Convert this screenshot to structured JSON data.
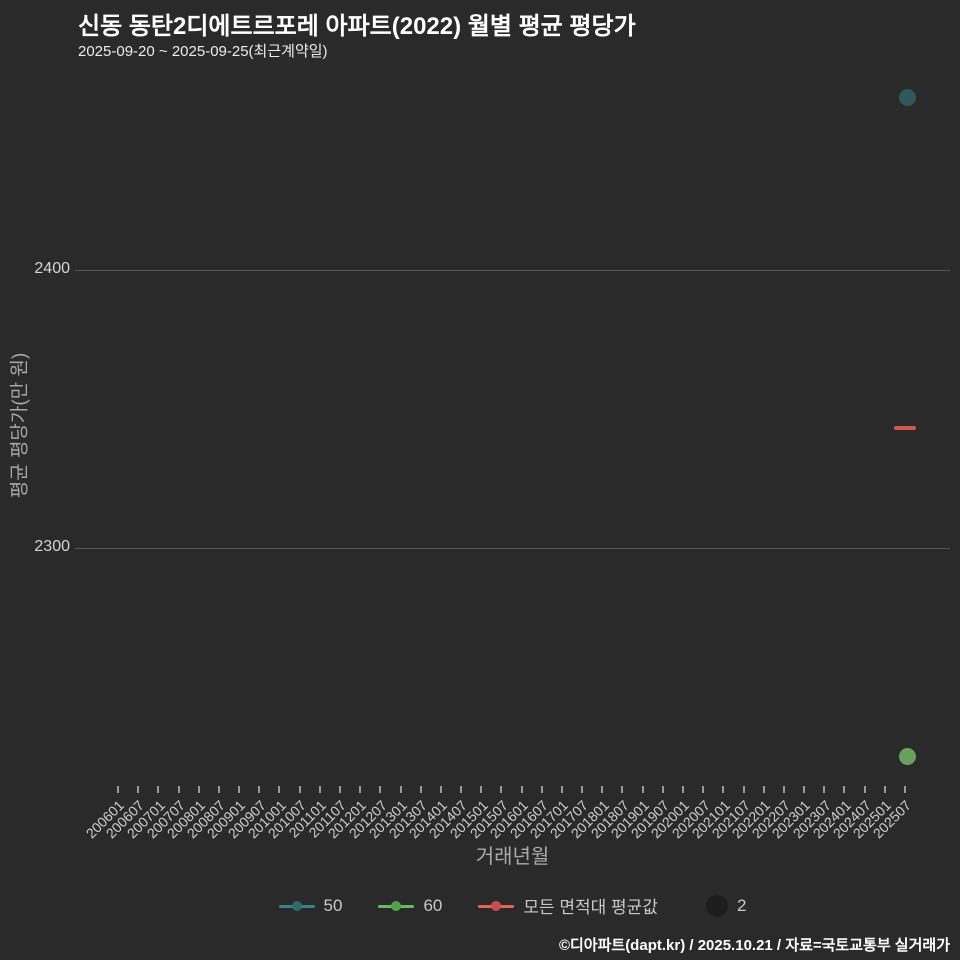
{
  "header": {
    "title": "신동 동탄2디에트르포레 아파트(2022) 월별 평균 평당가",
    "subtitle": "2025-09-20 ~ 2025-09-25(최근계약일)"
  },
  "footer": {
    "credit": "©디아파트(dapt.kr) / 2025.10.21 / 자료=국토교통부 실거래가"
  },
  "colors": {
    "background": "#2b2a2a",
    "gridline": "#585756",
    "teal_point": "#2e585c",
    "teal_legend_line": "#38838b",
    "teal_legend_dot": "#2e6b70",
    "green_point": "#69a05e",
    "green_legend_line": "#65bd5f",
    "green_legend_dot": "#55a04e",
    "red_point": "#d4574f",
    "red_legend_line": "#e4635a",
    "red_legend_dot": "#c9504a",
    "size_legend_circle": "#1d1d1d"
  },
  "chart_data": {
    "type": "scatter",
    "title": "신동 동탄2디에트르포레 아파트(2022) 월별 평균 평당가",
    "subtitle": "2025-09-20 ~ 2025-09-25(최근계약일)",
    "xlabel": "거래년월",
    "ylabel": "평균 평당가(만 원)",
    "y_ticks": [
      2400,
      2300
    ],
    "ylim": [
      2213,
      2472
    ],
    "grid": "horizontal-only",
    "legend_position": "bottom-center",
    "x_tick_labels": [
      "200601",
      "200607",
      "200701",
      "200707",
      "200801",
      "200807",
      "200901",
      "200907",
      "201001",
      "201007",
      "201101",
      "201107",
      "201201",
      "201207",
      "201301",
      "201307",
      "201401",
      "201407",
      "201501",
      "201507",
      "201601",
      "201607",
      "201701",
      "201707",
      "201801",
      "201807",
      "201901",
      "201907",
      "202001",
      "202007",
      "202101",
      "202107",
      "202201",
      "202207",
      "202301",
      "202307",
      "202401",
      "202407",
      "202501",
      "202507"
    ],
    "series": [
      {
        "name": "50",
        "marker": "dot",
        "color_key": "teal_point",
        "points": [
          {
            "x": "202507",
            "y": 2462
          }
        ]
      },
      {
        "name": "60",
        "marker": "dot",
        "color_key": "green_point",
        "points": [
          {
            "x": "202507",
            "y": 2225
          }
        ]
      },
      {
        "name": "모든 면적대 평균값",
        "marker": "dash",
        "color_key": "red_point",
        "points": [
          {
            "x": "202507",
            "y": 2343
          }
        ]
      }
    ],
    "size_legend": {
      "label": "2"
    }
  },
  "legend": {
    "items": [
      {
        "label": "50",
        "line_key": "teal_legend_line",
        "dot_key": "teal_legend_dot"
      },
      {
        "label": "60",
        "line_key": "green_legend_line",
        "dot_key": "green_legend_dot"
      },
      {
        "label": "모든 면적대 평균값",
        "line_key": "red_legend_line",
        "dot_key": "red_legend_dot"
      }
    ]
  }
}
